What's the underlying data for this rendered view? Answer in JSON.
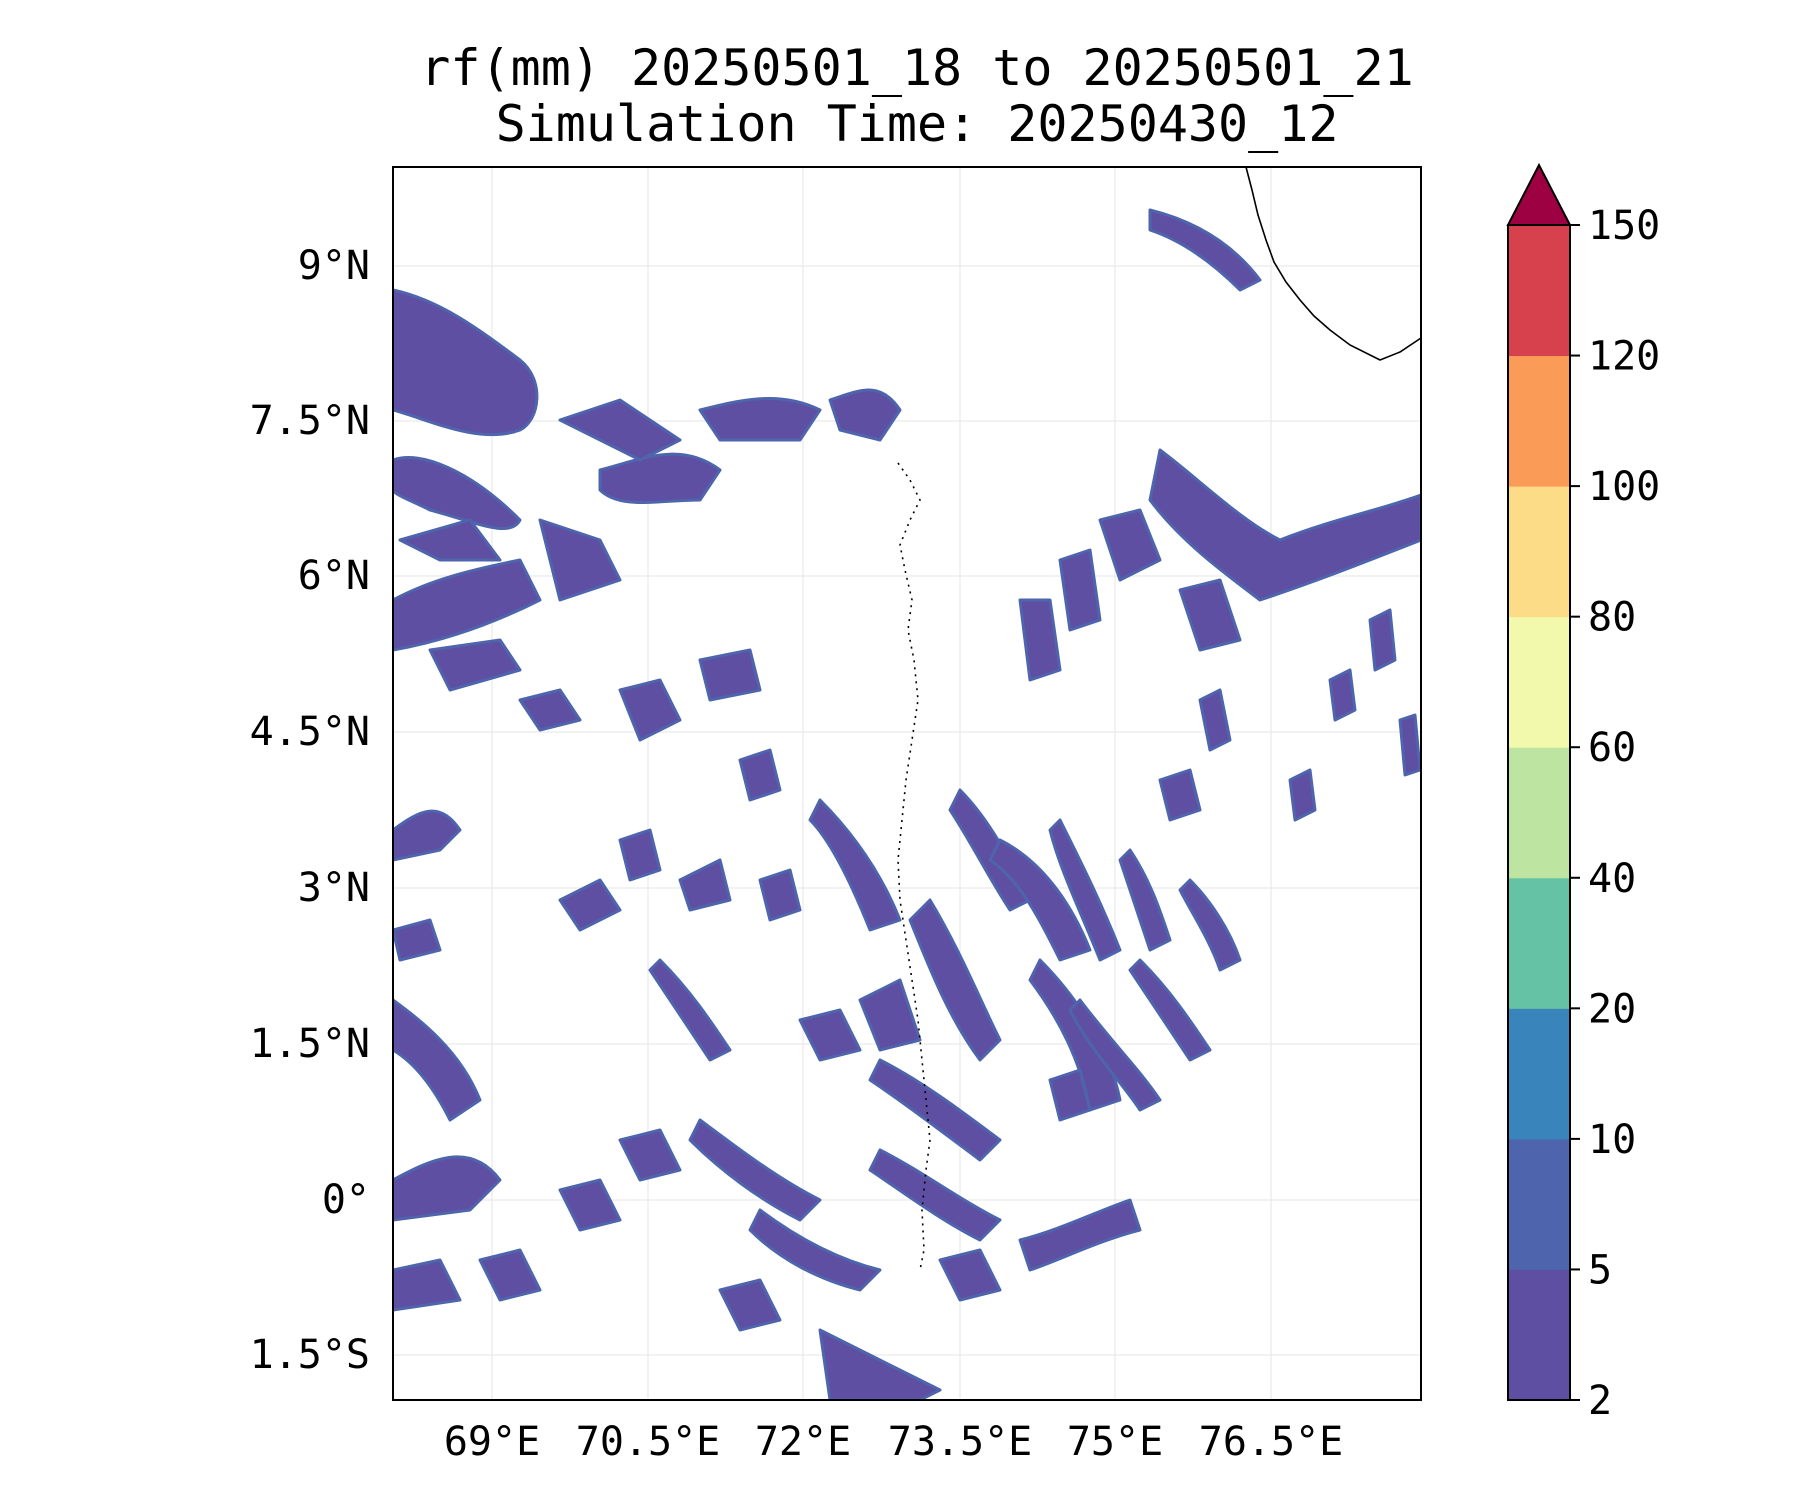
{
  "title": {
    "line1": "rf(mm) 20250501_18 to 20250501_21",
    "line2": "Simulation Time: 20250430_12"
  },
  "map": {
    "lat_ticks": [
      "9°N",
      "7.5°N",
      "6°N",
      "4.5°N",
      "3°N",
      "1.5°N",
      "0°",
      "1.5°S"
    ],
    "lon_ticks": [
      "69°E",
      "70.5°E",
      "72°E",
      "73.5°E",
      "75°E",
      "76.5°E"
    ],
    "gridlines": true,
    "coastline_color": "#000000"
  },
  "colorbar": {
    "levels": [
      "2",
      "5",
      "10",
      "20",
      "40",
      "60",
      "80",
      "100",
      "120",
      "150"
    ],
    "colors": [
      "#5e4fa2",
      "#4e64ad",
      "#3a84bc",
      "#66c2a5",
      "#bde4a0",
      "#f3f9ac",
      "#fddc88",
      "#fa9b58",
      "#d7414e"
    ],
    "extend_color": "#9e0142",
    "extend": "max"
  }
}
